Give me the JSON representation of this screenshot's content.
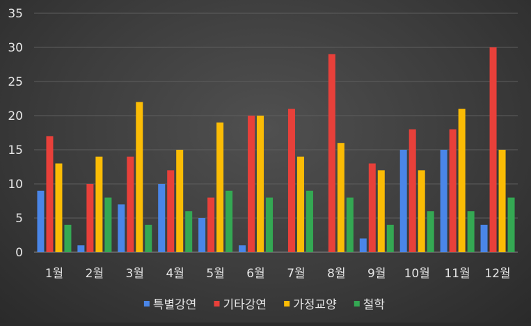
{
  "chart_data": {
    "type": "bar",
    "title": "",
    "xlabel": "",
    "ylabel": "",
    "ylim": [
      0,
      35
    ],
    "yticks": [
      0,
      5,
      10,
      15,
      20,
      25,
      30,
      35
    ],
    "grid": true,
    "legend_position": "bottom",
    "categories": [
      "1월",
      "2월",
      "3월",
      "4월",
      "5월",
      "6월",
      "7월",
      "8월",
      "9월",
      "10월",
      "11월",
      "12월"
    ],
    "series": [
      {
        "name": "특별강연",
        "color": "#4a86e8",
        "values": [
          9,
          1,
          7,
          10,
          5,
          1,
          0,
          0,
          2,
          15,
          15,
          4
        ]
      },
      {
        "name": "기타강연",
        "color": "#e8403a",
        "values": [
          17,
          10,
          14,
          12,
          8,
          20,
          21,
          29,
          13,
          18,
          18,
          30
        ]
      },
      {
        "name": "가정교양",
        "color": "#fbbc05",
        "values": [
          13,
          14,
          22,
          15,
          19,
          20,
          14,
          16,
          12,
          12,
          21,
          15
        ]
      },
      {
        "name": "철학",
        "color": "#34a853",
        "values": [
          4,
          8,
          4,
          6,
          9,
          8,
          9,
          8,
          4,
          6,
          6,
          8
        ]
      }
    ]
  }
}
